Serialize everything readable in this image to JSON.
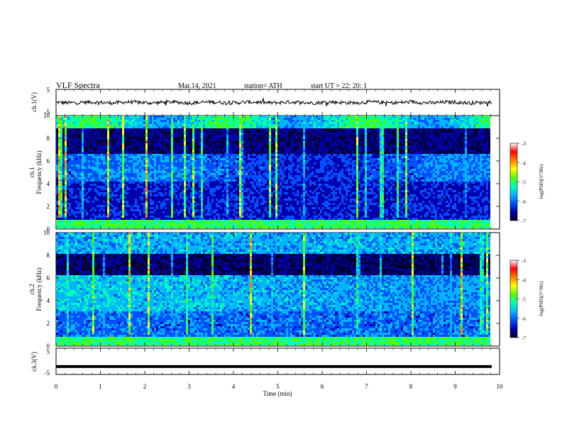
{
  "header": {
    "title": "VLF  Spectra",
    "date": "Mar.14, 2021",
    "station": "station= ATH",
    "start": "start  UT  =   22: 20: 1"
  },
  "chart_data": [
    {
      "id": "ch1-waveform",
      "type": "line",
      "ylabel": "ch.1(V)",
      "ylim": [
        -5,
        5
      ],
      "yticks": [
        "5",
        "-5"
      ],
      "series": [
        {
          "values_note_range": [
            -1,
            1
          ],
          "baseline": 0
        }
      ]
    },
    {
      "id": "ch1-spectrogram",
      "type": "heatmap",
      "ylabel": "ch.1\nFrequency (kHz)",
      "ylabel_lines": [
        "ch.1",
        "Frequency (kHz)"
      ],
      "ylim": [
        0,
        10
      ],
      "yticks": [
        "0",
        "2",
        "4",
        "6",
        "8",
        "10"
      ],
      "colorbar": {
        "label": "log(PSD)(V²/Hz)",
        "ticks": [
          "-3",
          "-4",
          "-5",
          "-6",
          "-7"
        ],
        "range": [
          -7,
          -3
        ]
      }
    },
    {
      "id": "ch2-spectrogram",
      "type": "heatmap",
      "ylabel_lines": [
        "ch.2",
        "Frequency (kHz)"
      ],
      "ylim": [
        0,
        10
      ],
      "yticks": [
        "0",
        "2",
        "4",
        "6",
        "8",
        "10"
      ],
      "colorbar": {
        "label": "log(PSD)(V²/Hz)",
        "ticks": [
          "-3",
          "-4",
          "-5",
          "-6",
          "-7"
        ],
        "range": [
          -7,
          -3
        ]
      }
    },
    {
      "id": "ch3-waveform",
      "type": "line",
      "ylabel": "ch.3(V)",
      "ylim": [
        -5,
        5
      ],
      "yticks": [
        "5",
        "-5"
      ],
      "series": [
        {
          "baseline": -2
        }
      ]
    }
  ],
  "xaxis": {
    "label": "Time  (min)",
    "xlim": [
      0,
      10
    ],
    "ticks": [
      "0",
      "1",
      "2",
      "3",
      "4",
      "5",
      "6",
      "7",
      "8",
      "9",
      "10"
    ]
  },
  "colors": {
    "colormap": [
      "#000033",
      "#0000aa",
      "#0050ff",
      "#00b4ff",
      "#00ffb4",
      "#50ff00",
      "#ffff00",
      "#ff8000",
      "#ff0000",
      "#ffffff"
    ]
  }
}
